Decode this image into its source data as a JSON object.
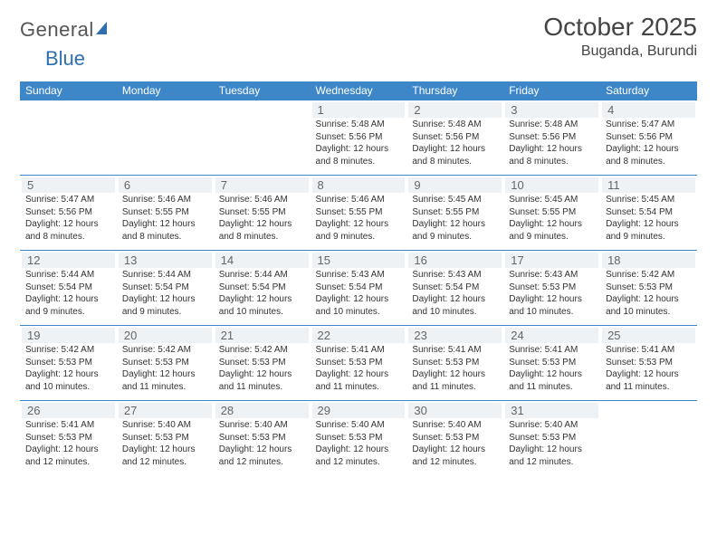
{
  "logo_general": "General",
  "logo_blue": "Blue",
  "month_title": "October 2025",
  "location": "Buganda, Burundi",
  "day_headers": [
    "Sunday",
    "Monday",
    "Tuesday",
    "Wednesday",
    "Thursday",
    "Friday",
    "Saturday"
  ],
  "colors": {
    "header_bg": "#3d87c9",
    "header_fg": "#ffffff",
    "row_border": "#3d87c9",
    "daynum_bg": "#eef2f5",
    "text": "#333333",
    "logo_gray": "#555555",
    "logo_blue": "#2f6faf"
  },
  "weeks": [
    [
      {
        "n": "",
        "sr": "",
        "ss": "",
        "dl": ""
      },
      {
        "n": "",
        "sr": "",
        "ss": "",
        "dl": ""
      },
      {
        "n": "",
        "sr": "",
        "ss": "",
        "dl": ""
      },
      {
        "n": "1",
        "sr": "Sunrise: 5:48 AM",
        "ss": "Sunset: 5:56 PM",
        "dl": "Daylight: 12 hours and 8 minutes."
      },
      {
        "n": "2",
        "sr": "Sunrise: 5:48 AM",
        "ss": "Sunset: 5:56 PM",
        "dl": "Daylight: 12 hours and 8 minutes."
      },
      {
        "n": "3",
        "sr": "Sunrise: 5:48 AM",
        "ss": "Sunset: 5:56 PM",
        "dl": "Daylight: 12 hours and 8 minutes."
      },
      {
        "n": "4",
        "sr": "Sunrise: 5:47 AM",
        "ss": "Sunset: 5:56 PM",
        "dl": "Daylight: 12 hours and 8 minutes."
      }
    ],
    [
      {
        "n": "5",
        "sr": "Sunrise: 5:47 AM",
        "ss": "Sunset: 5:56 PM",
        "dl": "Daylight: 12 hours and 8 minutes."
      },
      {
        "n": "6",
        "sr": "Sunrise: 5:46 AM",
        "ss": "Sunset: 5:55 PM",
        "dl": "Daylight: 12 hours and 8 minutes."
      },
      {
        "n": "7",
        "sr": "Sunrise: 5:46 AM",
        "ss": "Sunset: 5:55 PM",
        "dl": "Daylight: 12 hours and 8 minutes."
      },
      {
        "n": "8",
        "sr": "Sunrise: 5:46 AM",
        "ss": "Sunset: 5:55 PM",
        "dl": "Daylight: 12 hours and 9 minutes."
      },
      {
        "n": "9",
        "sr": "Sunrise: 5:45 AM",
        "ss": "Sunset: 5:55 PM",
        "dl": "Daylight: 12 hours and 9 minutes."
      },
      {
        "n": "10",
        "sr": "Sunrise: 5:45 AM",
        "ss": "Sunset: 5:55 PM",
        "dl": "Daylight: 12 hours and 9 minutes."
      },
      {
        "n": "11",
        "sr": "Sunrise: 5:45 AM",
        "ss": "Sunset: 5:54 PM",
        "dl": "Daylight: 12 hours and 9 minutes."
      }
    ],
    [
      {
        "n": "12",
        "sr": "Sunrise: 5:44 AM",
        "ss": "Sunset: 5:54 PM",
        "dl": "Daylight: 12 hours and 9 minutes."
      },
      {
        "n": "13",
        "sr": "Sunrise: 5:44 AM",
        "ss": "Sunset: 5:54 PM",
        "dl": "Daylight: 12 hours and 9 minutes."
      },
      {
        "n": "14",
        "sr": "Sunrise: 5:44 AM",
        "ss": "Sunset: 5:54 PM",
        "dl": "Daylight: 12 hours and 10 minutes."
      },
      {
        "n": "15",
        "sr": "Sunrise: 5:43 AM",
        "ss": "Sunset: 5:54 PM",
        "dl": "Daylight: 12 hours and 10 minutes."
      },
      {
        "n": "16",
        "sr": "Sunrise: 5:43 AM",
        "ss": "Sunset: 5:54 PM",
        "dl": "Daylight: 12 hours and 10 minutes."
      },
      {
        "n": "17",
        "sr": "Sunrise: 5:43 AM",
        "ss": "Sunset: 5:53 PM",
        "dl": "Daylight: 12 hours and 10 minutes."
      },
      {
        "n": "18",
        "sr": "Sunrise: 5:42 AM",
        "ss": "Sunset: 5:53 PM",
        "dl": "Daylight: 12 hours and 10 minutes."
      }
    ],
    [
      {
        "n": "19",
        "sr": "Sunrise: 5:42 AM",
        "ss": "Sunset: 5:53 PM",
        "dl": "Daylight: 12 hours and 10 minutes."
      },
      {
        "n": "20",
        "sr": "Sunrise: 5:42 AM",
        "ss": "Sunset: 5:53 PM",
        "dl": "Daylight: 12 hours and 11 minutes."
      },
      {
        "n": "21",
        "sr": "Sunrise: 5:42 AM",
        "ss": "Sunset: 5:53 PM",
        "dl": "Daylight: 12 hours and 11 minutes."
      },
      {
        "n": "22",
        "sr": "Sunrise: 5:41 AM",
        "ss": "Sunset: 5:53 PM",
        "dl": "Daylight: 12 hours and 11 minutes."
      },
      {
        "n": "23",
        "sr": "Sunrise: 5:41 AM",
        "ss": "Sunset: 5:53 PM",
        "dl": "Daylight: 12 hours and 11 minutes."
      },
      {
        "n": "24",
        "sr": "Sunrise: 5:41 AM",
        "ss": "Sunset: 5:53 PM",
        "dl": "Daylight: 12 hours and 11 minutes."
      },
      {
        "n": "25",
        "sr": "Sunrise: 5:41 AM",
        "ss": "Sunset: 5:53 PM",
        "dl": "Daylight: 12 hours and 11 minutes."
      }
    ],
    [
      {
        "n": "26",
        "sr": "Sunrise: 5:41 AM",
        "ss": "Sunset: 5:53 PM",
        "dl": "Daylight: 12 hours and 12 minutes."
      },
      {
        "n": "27",
        "sr": "Sunrise: 5:40 AM",
        "ss": "Sunset: 5:53 PM",
        "dl": "Daylight: 12 hours and 12 minutes."
      },
      {
        "n": "28",
        "sr": "Sunrise: 5:40 AM",
        "ss": "Sunset: 5:53 PM",
        "dl": "Daylight: 12 hours and 12 minutes."
      },
      {
        "n": "29",
        "sr": "Sunrise: 5:40 AM",
        "ss": "Sunset: 5:53 PM",
        "dl": "Daylight: 12 hours and 12 minutes."
      },
      {
        "n": "30",
        "sr": "Sunrise: 5:40 AM",
        "ss": "Sunset: 5:53 PM",
        "dl": "Daylight: 12 hours and 12 minutes."
      },
      {
        "n": "31",
        "sr": "Sunrise: 5:40 AM",
        "ss": "Sunset: 5:53 PM",
        "dl": "Daylight: 12 hours and 12 minutes."
      },
      {
        "n": "",
        "sr": "",
        "ss": "",
        "dl": ""
      }
    ]
  ]
}
